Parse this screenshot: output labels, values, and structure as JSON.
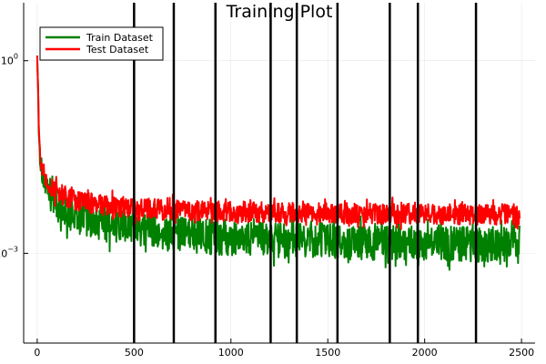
{
  "chart_data": {
    "type": "line",
    "title": "Training Plot",
    "xlabel": "",
    "ylabel": "",
    "yscale": "log",
    "xlim": [
      -70,
      2570
    ],
    "ylim": [
      4e-05,
      8
    ],
    "grid": true,
    "legend_position": "top-left",
    "x_ticks": [
      {
        "value": 0,
        "label": "0"
      },
      {
        "value": 500,
        "label": "500"
      },
      {
        "value": 1000,
        "label": "1000"
      },
      {
        "value": 1500,
        "label": "1500"
      },
      {
        "value": 2000,
        "label": "2000"
      },
      {
        "value": 2500,
        "label": "2500"
      }
    ],
    "y_ticks": [
      {
        "value": 1,
        "base": "10",
        "exp": "0"
      },
      {
        "value": 0.001,
        "base": "10",
        "exp": "−3"
      }
    ],
    "vertical_lines": [
      500,
      705,
      920,
      1205,
      1340,
      1550,
      1820,
      1965,
      2265
    ],
    "series": [
      {
        "name": "Train Dataset",
        "color": "#008000",
        "x": [
          0,
          5,
          10,
          15,
          20,
          30,
          40,
          50,
          60,
          80,
          100,
          130,
          160,
          200,
          250,
          300,
          350,
          400,
          450,
          500,
          550,
          600,
          650,
          700,
          750,
          800,
          850,
          900,
          950,
          1000,
          1100,
          1200,
          1300,
          1400,
          1500,
          1600,
          1700,
          1800,
          1900,
          2000,
          2100,
          2200,
          2300,
          2400,
          2490
        ],
        "y": [
          1.2,
          0.3,
          0.06,
          0.03,
          0.02,
          0.015,
          0.011,
          0.009,
          0.008,
          0.0065,
          0.0055,
          0.0048,
          0.0042,
          0.0037,
          0.0033,
          0.003,
          0.0028,
          0.0026,
          0.0024,
          0.0023,
          0.0022,
          0.0021,
          0.002,
          0.0019,
          0.00185,
          0.0018,
          0.00175,
          0.0017,
          0.00168,
          0.00165,
          0.0016,
          0.00155,
          0.0015,
          0.00148,
          0.00145,
          0.00142,
          0.0014,
          0.00138,
          0.00135,
          0.00133,
          0.0013,
          0.00128,
          0.00126,
          0.00125,
          0.00124
        ]
      },
      {
        "name": "Test Dataset",
        "color": "#ff0000",
        "x": [
          0,
          5,
          10,
          15,
          20,
          30,
          40,
          50,
          60,
          80,
          100,
          130,
          160,
          200,
          250,
          300,
          350,
          400,
          450,
          500,
          550,
          600,
          650,
          700,
          750,
          800,
          850,
          900,
          950,
          1000,
          1100,
          1200,
          1300,
          1400,
          1500,
          1600,
          1700,
          1800,
          1900,
          2000,
          2100,
          2200,
          2300,
          2400,
          2490
        ],
        "y": [
          1.2,
          0.3,
          0.07,
          0.035,
          0.025,
          0.018,
          0.014,
          0.012,
          0.011,
          0.0095,
          0.0085,
          0.0078,
          0.0072,
          0.0066,
          0.006,
          0.0056,
          0.0053,
          0.0051,
          0.005,
          0.0049,
          0.0048,
          0.0047,
          0.0046,
          0.0045,
          0.0045,
          0.0044,
          0.0044,
          0.0043,
          0.0043,
          0.0043,
          0.0042,
          0.0042,
          0.0041,
          0.0041,
          0.0041,
          0.004,
          0.004,
          0.004,
          0.004,
          0.0039,
          0.0039,
          0.0039,
          0.0039,
          0.0038,
          0.0038
        ]
      }
    ]
  }
}
